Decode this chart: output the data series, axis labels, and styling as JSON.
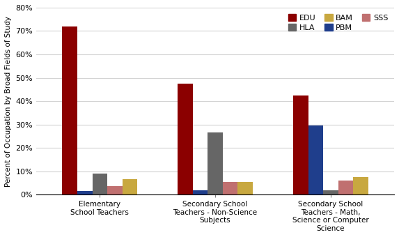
{
  "categories": [
    "Elementary\nSchool Teachers",
    "Secondary School\nTeachers - Non-Science\nSubjects",
    "Secondary School\nTeachers - Math,\nScience or Computer\nScience"
  ],
  "series": {
    "EDU": [
      0.72,
      0.475,
      0.425
    ],
    "PBM": [
      0.015,
      0.02,
      0.295
    ],
    "HLA": [
      0.09,
      0.265,
      0.02
    ],
    "SSS": [
      0.035,
      0.055,
      0.06
    ],
    "BAM": [
      0.065,
      0.055,
      0.075
    ]
  },
  "colors": {
    "EDU": "#8B0000",
    "HLA": "#666666",
    "BAM": "#C8A840",
    "PBM": "#1F3E8C",
    "SSS": "#C07070"
  },
  "legend_order": [
    "EDU",
    "HLA",
    "BAM",
    "PBM",
    "SSS"
  ],
  "bar_order": [
    "EDU",
    "PBM",
    "HLA",
    "SSS",
    "BAM"
  ],
  "ylabel": "Percent of Occupation by Broad Fields of Study",
  "ylim": [
    0,
    0.8
  ],
  "yticks": [
    0,
    0.1,
    0.2,
    0.3,
    0.4,
    0.5,
    0.6,
    0.7,
    0.8
  ],
  "ytick_labels": [
    "0%",
    "10%",
    "20%",
    "30%",
    "40%",
    "50%",
    "60%",
    "70%",
    "80%"
  ],
  "bar_width": 0.13
}
